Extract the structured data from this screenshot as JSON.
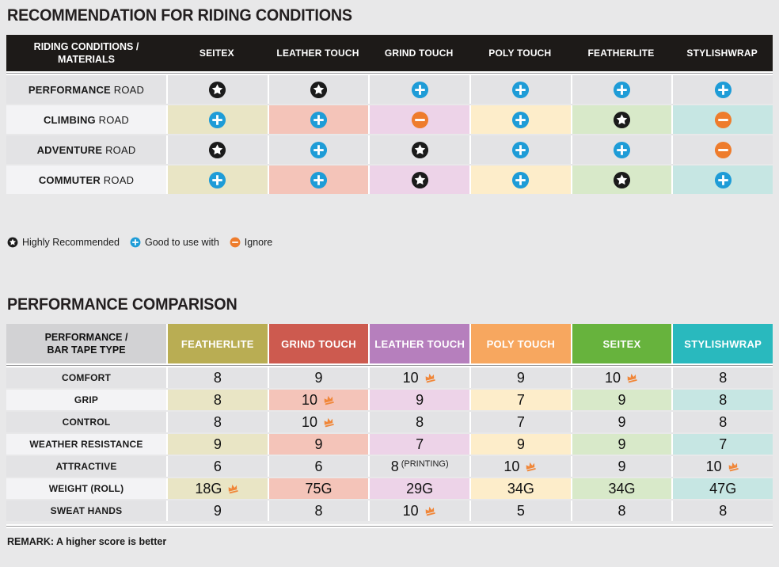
{
  "colors": {
    "page_bg": "#e8e8e9",
    "table1_header_bg": "#1d1a18",
    "row_plain": "#e3e3e5",
    "label_tinted": "#f3f3f5",
    "corner2_bg": "#d2d2d4",
    "column_tints": [
      "#e9e5c5",
      "#f4c4b9",
      "#edd3e8",
      "#fdedca",
      "#d8e9c9",
      "#c6e6e3"
    ],
    "column_header_colors": [
      "#b9ad53",
      "#cd5a4f",
      "#b67fbd",
      "#f7a75f",
      "#67b33d",
      "#29b9be"
    ],
    "star": "#1b1b1b",
    "plus": "#1e9cd7",
    "minus": "#ee7c2c",
    "crown": "#f0873a"
  },
  "chart_data": [
    {
      "type": "table",
      "title": "RECOMMENDATION FOR RIDING CONDITIONS",
      "corner_line1": "RIDING CONDITIONS /",
      "corner_line2": "MATERIALS",
      "columns": [
        "SEITEX",
        "LEATHER TOUCH",
        "GRIND TOUCH",
        "POLY TOUCH",
        "FEATHERLITE",
        "STYLISHWRAP"
      ],
      "rows": [
        {
          "label_bold": "PERFORMANCE",
          "label_rest": "ROAD",
          "tinted": false,
          "icons": [
            "star",
            "star",
            "plus",
            "plus",
            "plus",
            "plus"
          ]
        },
        {
          "label_bold": "CLIMBING",
          "label_rest": "ROAD",
          "tinted": true,
          "icons": [
            "plus",
            "plus",
            "minus",
            "plus",
            "star",
            "minus"
          ]
        },
        {
          "label_bold": "ADVENTURE",
          "label_rest": "ROAD",
          "tinted": false,
          "icons": [
            "star",
            "plus",
            "star",
            "plus",
            "plus",
            "minus"
          ]
        },
        {
          "label_bold": "COMMUTER",
          "label_rest": "ROAD",
          "tinted": true,
          "icons": [
            "plus",
            "plus",
            "star",
            "plus",
            "star",
            "plus"
          ]
        }
      ],
      "legend": [
        {
          "icon": "star",
          "label": "Highly Recommended"
        },
        {
          "icon": "plus",
          "label": "Good to use with"
        },
        {
          "icon": "minus",
          "label": "Ignore"
        }
      ]
    },
    {
      "type": "table",
      "title": "PERFORMANCE COMPARISON",
      "corner_line1": "PERFORMANCE /",
      "corner_line2": "BAR TAPE TYPE",
      "columns": [
        "FEATHERLITE",
        "GRIND TOUCH",
        "LEATHER TOUCH",
        "POLY TOUCH",
        "SEITEX",
        "STYLISHWRAP"
      ],
      "rows": [
        {
          "label": "COMFORT",
          "tinted": false,
          "cells": [
            {
              "v": "8"
            },
            {
              "v": "9"
            },
            {
              "v": "10",
              "crown": true
            },
            {
              "v": "9"
            },
            {
              "v": "10",
              "crown": true
            },
            {
              "v": "8"
            }
          ]
        },
        {
          "label": "GRIP",
          "tinted": true,
          "cells": [
            {
              "v": "8"
            },
            {
              "v": "10",
              "crown": true
            },
            {
              "v": "9"
            },
            {
              "v": "7"
            },
            {
              "v": "9"
            },
            {
              "v": "8"
            }
          ]
        },
        {
          "label": "CONTROL",
          "tinted": false,
          "cells": [
            {
              "v": "8"
            },
            {
              "v": "10",
              "crown": true
            },
            {
              "v": "8"
            },
            {
              "v": "7"
            },
            {
              "v": "9"
            },
            {
              "v": "8"
            }
          ]
        },
        {
          "label": "WEATHER RESISTANCE",
          "tinted": true,
          "cells": [
            {
              "v": "9"
            },
            {
              "v": "9"
            },
            {
              "v": "7"
            },
            {
              "v": "9"
            },
            {
              "v": "9"
            },
            {
              "v": "7"
            }
          ]
        },
        {
          "label": "ATTRACTIVE",
          "tinted": false,
          "cells": [
            {
              "v": "6"
            },
            {
              "v": "6"
            },
            {
              "v": "8",
              "note": "(PRINTING)"
            },
            {
              "v": "10",
              "crown": true
            },
            {
              "v": "9"
            },
            {
              "v": "10",
              "crown": true
            }
          ]
        },
        {
          "label": "WEIGHT (ROLL)",
          "tinted": true,
          "cells": [
            {
              "v": "18G",
              "crown": true
            },
            {
              "v": "75G"
            },
            {
              "v": "29G"
            },
            {
              "v": "34G"
            },
            {
              "v": "34G"
            },
            {
              "v": "47G"
            }
          ]
        },
        {
          "label": "SWEAT HANDS",
          "tinted": false,
          "cells": [
            {
              "v": "9"
            },
            {
              "v": "8"
            },
            {
              "v": "10",
              "crown": true
            },
            {
              "v": "5"
            },
            {
              "v": "8"
            },
            {
              "v": "8"
            }
          ]
        }
      ],
      "remark": "REMARK: A higher score is better"
    }
  ]
}
